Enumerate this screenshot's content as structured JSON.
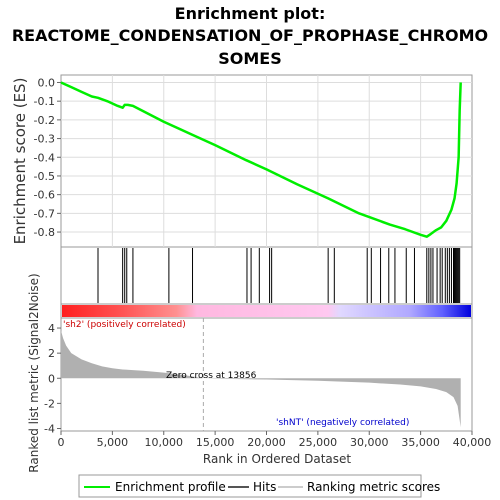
{
  "colors": {
    "es_line": "#00ee00",
    "hits": "#000000",
    "metric_fill": "#b0b0b0",
    "positive": "#ff0000",
    "negative": "#0000ff",
    "zero_cross_line": "#aaaaaa",
    "pos_label": "#cc0000",
    "neg_label": "#0000cc"
  },
  "title_lines": [
    "Enrichment plot:",
    "REACTOME_CONDENSATION_OF_PROPHASE_CHROMO",
    "SOMES"
  ],
  "chart_data": [
    {
      "type": "line",
      "panel": "enrichment-score",
      "ylabel": "Enrichment score (ES)",
      "ylim": [
        -0.88,
        0.04
      ],
      "y_ticks": [
        0.0,
        -0.1,
        -0.2,
        -0.3,
        -0.4,
        -0.5,
        -0.6,
        -0.7,
        -0.8
      ],
      "y_tick_labels": [
        "0.0",
        "-0.1",
        "-0.2",
        "-0.3",
        "-0.4",
        "-0.5",
        "-0.6",
        "-0.7",
        "-0.8"
      ],
      "xlim": [
        0,
        40000
      ],
      "grid": true,
      "series": [
        {
          "x": [
            0,
            1000,
            2000,
            3000,
            3600,
            4500,
            5500,
            6000,
            6200,
            6500,
            7000,
            10000,
            12800,
            15000,
            18000,
            20000,
            23000,
            26000,
            29000,
            32000,
            33500,
            35000,
            35600,
            36000,
            36500,
            37000,
            37500,
            38000,
            38300,
            38500,
            38700,
            38800,
            38900
          ],
          "values": [
            0.0,
            -0.025,
            -0.05,
            -0.075,
            -0.082,
            -0.1,
            -0.125,
            -0.135,
            -0.12,
            -0.12,
            -0.125,
            -0.21,
            -0.28,
            -0.335,
            -0.415,
            -0.465,
            -0.545,
            -0.62,
            -0.7,
            -0.76,
            -0.785,
            -0.815,
            -0.825,
            -0.81,
            -0.79,
            -0.775,
            -0.74,
            -0.68,
            -0.62,
            -0.54,
            -0.4,
            -0.15,
            0.0
          ]
        }
      ]
    },
    {
      "type": "hits",
      "panel": "hit-positions",
      "x": [
        3600,
        6000,
        6200,
        6400,
        7000,
        10500,
        12800,
        18100,
        18500,
        19300,
        20300,
        20500,
        26000,
        26600,
        29800,
        30200,
        31100,
        31900,
        32500,
        33600,
        34400,
        35600,
        35800,
        36000,
        36200,
        36600,
        36900,
        37100,
        37400,
        37600,
        37800,
        38000,
        38200,
        38300,
        38400,
        38500,
        38600,
        38700,
        38800
      ]
    },
    {
      "type": "area",
      "panel": "ranked-list-metric",
      "ylabel": "Ranked list metric (Signal2Noise)",
      "xlabel": "Rank in Ordered Dataset",
      "xlim": [
        0,
        40000
      ],
      "x_ticks": [
        0,
        5000,
        10000,
        15000,
        20000,
        25000,
        30000,
        35000,
        40000
      ],
      "x_tick_labels": [
        "0",
        "5,000",
        "10,000",
        "15,000",
        "20,000",
        "25,000",
        "30,000",
        "35,000",
        "40,000"
      ],
      "ylim": [
        -4.2,
        4.8
      ],
      "y_ticks": [
        4,
        2,
        0,
        -2,
        -4
      ],
      "y_tick_labels": [
        "4",
        "2",
        "0",
        "-2",
        "-4"
      ],
      "zero_cross": 13856,
      "annotations": {
        "zero_cross": "Zero cross at 13856",
        "positive": "'sh2' (positively correlated)",
        "negative": "'shNT' (negatively correlated)"
      },
      "series": [
        {
          "x": [
            0,
            200,
            500,
            1000,
            2000,
            3000,
            4000,
            5000,
            6000,
            8000,
            10000,
            12000,
            13856,
            16000,
            20000,
            25000,
            30000,
            33000,
            35000,
            36500,
            37500,
            38200,
            38600,
            38900
          ],
          "values": [
            3.8,
            3.2,
            2.6,
            2.0,
            1.5,
            1.2,
            0.95,
            0.8,
            0.7,
            0.6,
            0.45,
            0.25,
            0.0,
            -0.05,
            -0.1,
            -0.2,
            -0.35,
            -0.5,
            -0.65,
            -0.85,
            -1.1,
            -1.5,
            -2.2,
            -3.9
          ]
        }
      ]
    }
  ],
  "legend": {
    "items": [
      {
        "label": "Enrichment profile"
      },
      {
        "label": "Hits"
      },
      {
        "label": "Ranking metric scores"
      }
    ]
  }
}
